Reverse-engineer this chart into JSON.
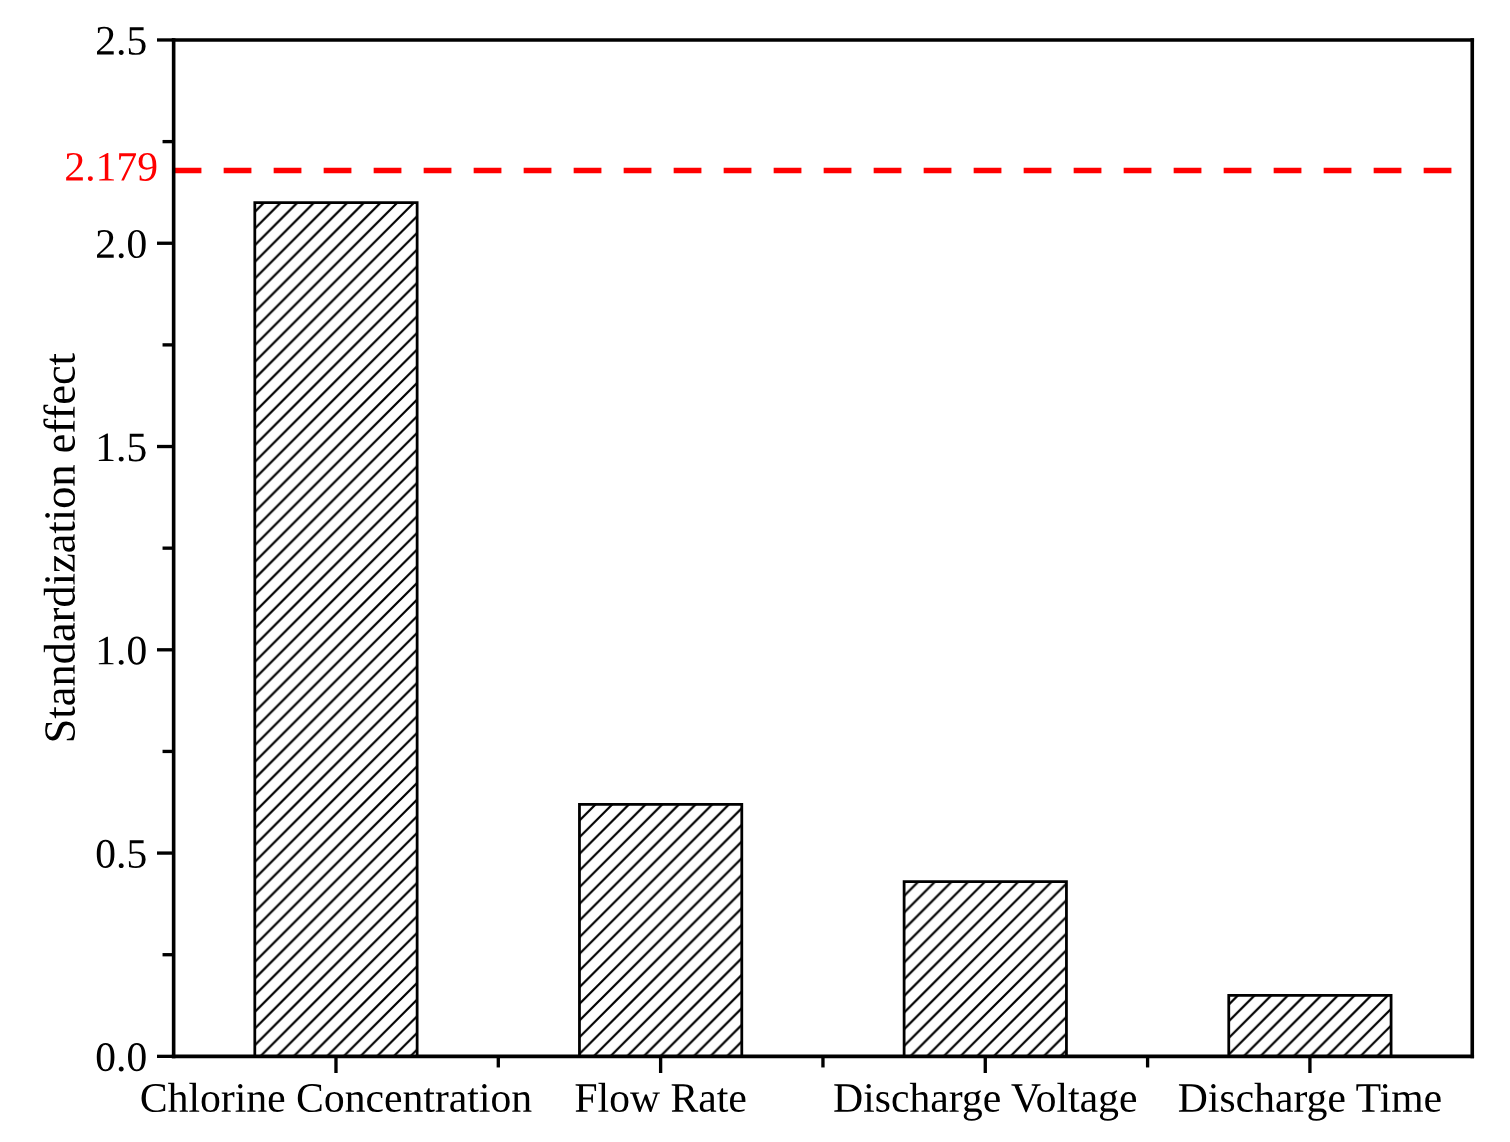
{
  "chart_data": {
    "type": "bar",
    "ylabel": "Standardization effect",
    "categories": [
      "Chlorine Concentration",
      "Flow Rate",
      "Discharge Voltage",
      "Discharge Time"
    ],
    "values": [
      2.1,
      0.62,
      0.43,
      0.15
    ],
    "color": "#000000",
    "ylim": [
      0,
      2.5
    ],
    "yticks": [
      {
        "value": 0,
        "label": "0.0"
      },
      {
        "value": 0.5,
        "label": "0.5"
      },
      {
        "value": 1,
        "label": "1.0"
      },
      {
        "value": 1.5,
        "label": "1.5"
      },
      {
        "value": 2,
        "label": "2.0"
      },
      {
        "value": 2.5,
        "label": "2.5"
      }
    ],
    "ref_lines": [
      {
        "axis": "y",
        "value": 2.179,
        "label": "2.179",
        "color": "#ff0000",
        "line_style": "dashed"
      }
    ],
    "grid": false,
    "legend": false
  }
}
